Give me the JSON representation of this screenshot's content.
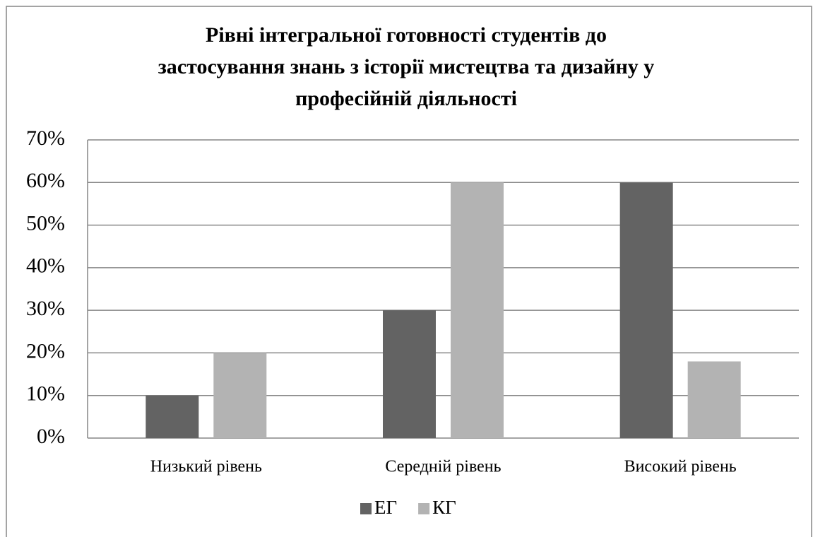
{
  "chart_data": {
    "type": "bar",
    "title": [
      "Рівні інтегральної готовності студентів до",
      "застосування знань з історії мистецтва та дизайну у",
      "професійній діяльності"
    ],
    "categories": [
      "Низький рівень",
      "Середній рівень",
      "Високий рівень"
    ],
    "series": [
      {
        "name": "ЕГ",
        "color": "#636363",
        "values": [
          10,
          30,
          60
        ]
      },
      {
        "name": "КГ",
        "color": "#b3b3b3",
        "values": [
          20,
          60,
          18
        ]
      }
    ],
    "ylim": [
      0,
      70
    ],
    "yticks": [
      {
        "value": 0,
        "label": "0%"
      },
      {
        "value": 10,
        "label": "10%"
      },
      {
        "value": 20,
        "label": "20%"
      },
      {
        "value": 30,
        "label": "30%"
      },
      {
        "value": 40,
        "label": "40%"
      },
      {
        "value": 50,
        "label": "50%"
      },
      {
        "value": 60,
        "label": "60%"
      },
      {
        "value": 70,
        "label": "70%"
      }
    ],
    "grid": true,
    "legend": "bottom"
  }
}
